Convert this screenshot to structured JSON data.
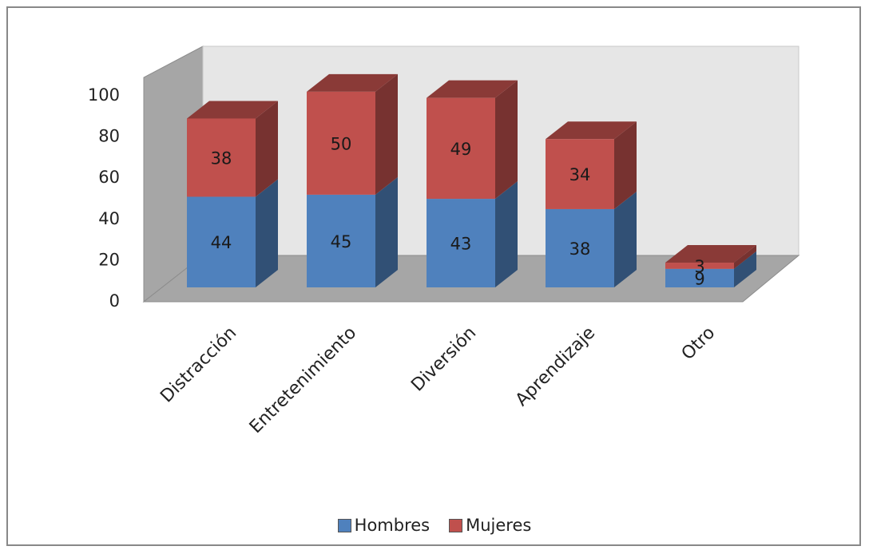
{
  "chart_data": {
    "type": "bar",
    "stacked": true,
    "three_d": true,
    "categories": [
      "Distracción",
      "Entretenimiento",
      "Diversión",
      "Aprendizaje",
      "Otro"
    ],
    "series": [
      {
        "name": "Hombres",
        "values": [
          44,
          45,
          43,
          38,
          9
        ],
        "color": "#4f81bd"
      },
      {
        "name": "Mujeres",
        "values": [
          38,
          50,
          49,
          34,
          3
        ],
        "color": "#c0504d"
      }
    ],
    "ylim": [
      0,
      100
    ],
    "yticks": [
      0,
      20,
      40,
      60,
      80,
      100
    ],
    "legend_position": "bottom",
    "grid": false
  }
}
